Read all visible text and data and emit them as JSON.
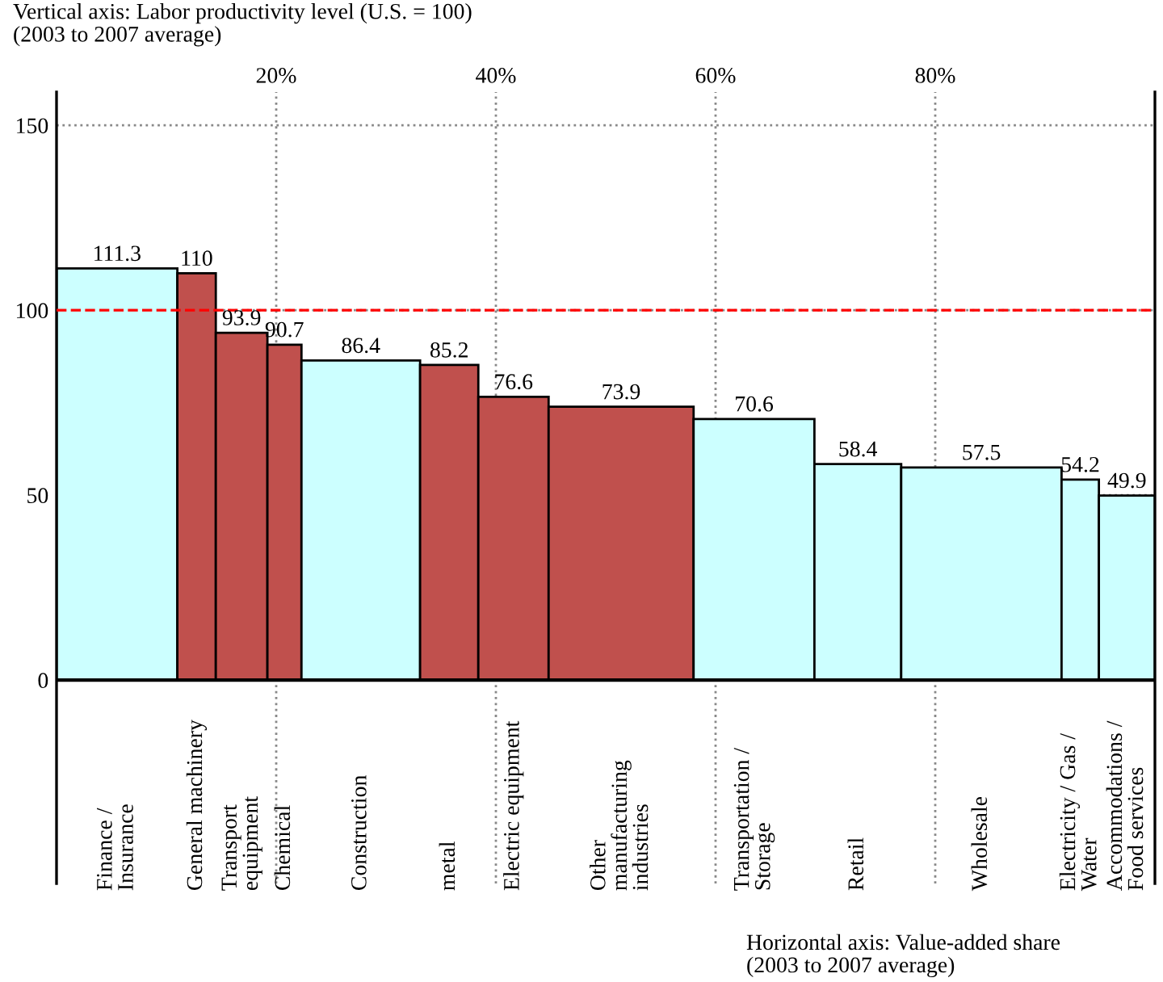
{
  "chart_data": {
    "type": "bar",
    "ylabel": "Vertical axis: Labor productivity level (U.S. = 100)\n(2003 to 2007 average)",
    "xlabel": "Horizontal axis: Value-added share\n(2003 to 2007 average)",
    "x": [
      5.5,
      12.75,
      16.85,
      20.75,
      27.7,
      35.75,
      41.6,
      51.4,
      63.5,
      72.95,
      84.2,
      93.2,
      97.45
    ],
    "values": [
      111.3,
      110,
      93.9,
      90.7,
      86.4,
      85.2,
      76.6,
      73.9,
      70.6,
      58.4,
      57.5,
      54.2,
      49.9
    ],
    "colors": [
      "#ccffff",
      "#c0504d",
      "#c0504d",
      "#c0504d",
      "#ccffff",
      "#c0504d",
      "#c0504d",
      "#c0504d",
      "#ccffff",
      "#ccffff",
      "#ccffff",
      "#ccffff",
      "#ccffff"
    ],
    "data_labels": true,
    "annotations": [
      "Finance /\nInsurance",
      "General machinery",
      "Transport\nequipment",
      "Chemical",
      "Construction",
      "metal",
      "Electric equipment",
      "Other\nmanufacturing\nindustries",
      "Transportation /\nStorage",
      "Retail",
      "Wholesale",
      "Electricity / Gas /\nWater",
      "Accommodations /\nFood services"
    ],
    "legend": false,
    "xlim": [
      0,
      100
    ],
    "xticks": [
      {
        "value": 20,
        "label": "20%"
      },
      {
        "value": 40,
        "label": "40%"
      },
      {
        "value": 60,
        "label": "60%"
      },
      {
        "value": 80,
        "label": "80%"
      }
    ],
    "ylim": [
      -55,
      159
    ],
    "yticks": [
      0,
      50,
      100,
      150
    ],
    "ref_lines": [
      {
        "axis": "y",
        "value": 100,
        "color": "#ff0000",
        "line_style": "dashed"
      }
    ],
    "grid": true
  }
}
